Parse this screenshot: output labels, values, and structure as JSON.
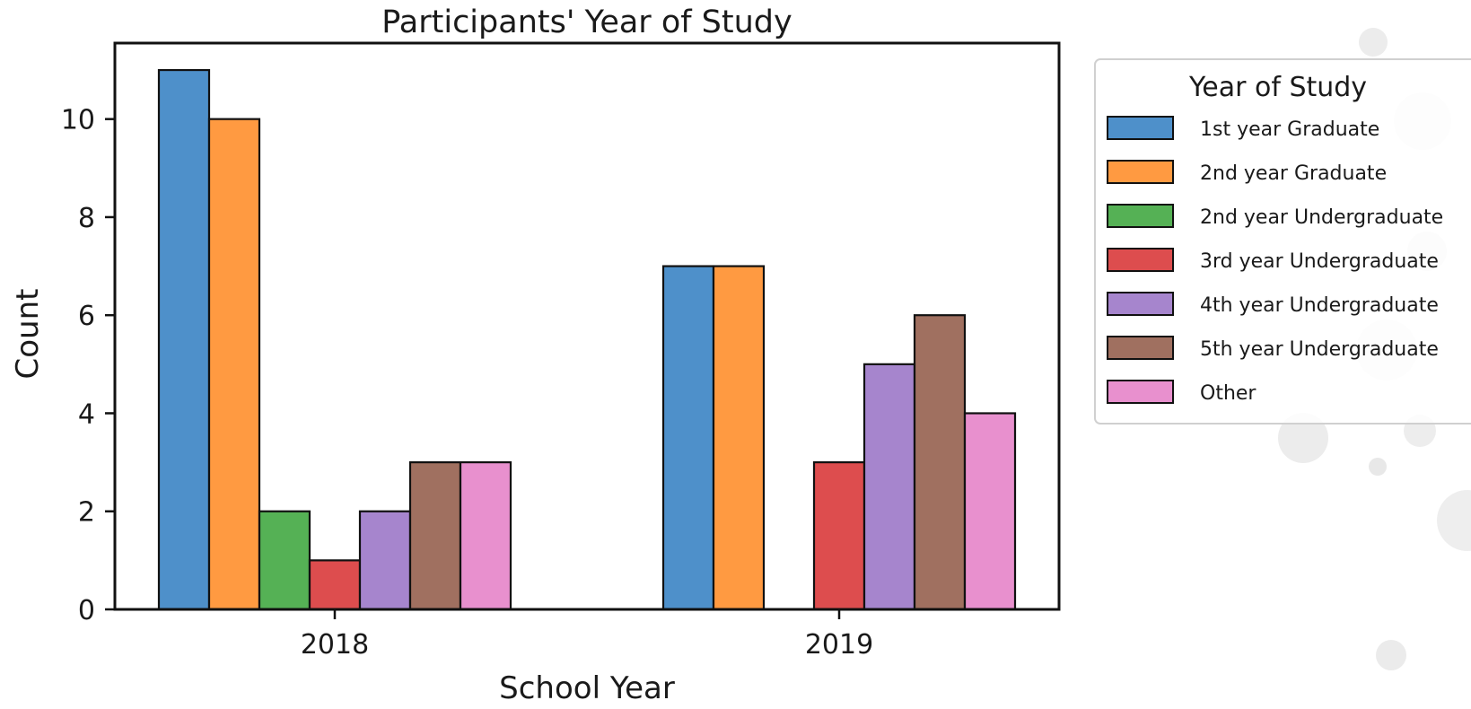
{
  "chart_data": {
    "type": "bar",
    "title": "Participants' Year of Study",
    "xlabel": "School Year",
    "ylabel": "Count",
    "categories": [
      "2018",
      "2019"
    ],
    "ylim": [
      0,
      11.55
    ],
    "yticks": [
      0,
      2,
      4,
      6,
      8,
      10
    ],
    "grid": false,
    "legend": {
      "title": "Year of Study",
      "placement": "outside-right-top"
    },
    "series": [
      {
        "name": "1st year Graduate",
        "color": "#3b84c4",
        "values": [
          11,
          7
        ]
      },
      {
        "name": "2nd year Graduate",
        "color": "#ff8f2c",
        "values": [
          10,
          7
        ]
      },
      {
        "name": "2nd year Undergraduate",
        "color": "#42a942",
        "values": [
          2,
          0
        ]
      },
      {
        "name": "3rd year Undergraduate",
        "color": "#d93a3b",
        "values": [
          1,
          3
        ]
      },
      {
        "name": "4th year Undergraduate",
        "color": "#9c78c8",
        "values": [
          2,
          5
        ]
      },
      {
        "name": "5th year Undergraduate",
        "color": "#96614f",
        "values": [
          3,
          6
        ]
      },
      {
        "name": "Other",
        "color": "#e584c9",
        "values": [
          3,
          4
        ]
      }
    ]
  }
}
